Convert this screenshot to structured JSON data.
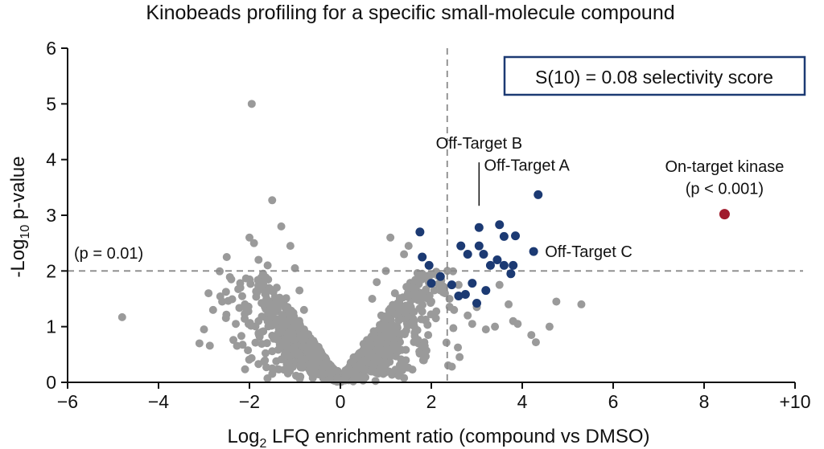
{
  "chart_data": {
    "type": "scatter",
    "title": "Kinobeads profiling for a specific small-molecule compound",
    "xlabel": {
      "prefix": "Log",
      "sub": "2",
      "suffix": " LFQ enrichment ratio (compound vs DMSO)"
    },
    "ylabel": {
      "prefix": "-Log",
      "sub": "10",
      "suffix": " p-value"
    },
    "xlim": [
      -6,
      10
    ],
    "ylim": [
      0,
      6
    ],
    "x_ticks": [
      -6,
      -4,
      -2,
      0,
      2,
      4,
      6,
      8,
      10
    ],
    "x_tick_labels": [
      "−6",
      "−4",
      "−2",
      "0",
      "2",
      "4",
      "6",
      "8",
      "+10"
    ],
    "y_ticks": [
      0,
      1,
      2,
      3,
      4,
      5,
      6
    ],
    "y_tick_labels": [
      "0",
      "1",
      "2",
      "3",
      "4",
      "5",
      "6"
    ],
    "grid": false,
    "thresholds": {
      "x": 2.35,
      "y": 2.0
    },
    "threshold_label": "(p = 0.01)",
    "score_box": "S(10) = 0.08 selectivity score",
    "colors": {
      "background": "#9a9a9a",
      "hits": "#1c3a73",
      "on_target": "#a01a2c",
      "threshold": "#8a8a8a",
      "box": "#1c3a73"
    },
    "series": [
      {
        "role": "background",
        "seed": 7,
        "count": 1500,
        "x": [
          -4.8,
          -3.1,
          -3.0,
          -2.9,
          -2.8,
          -2.6,
          -2.5,
          -2.4,
          -2.3,
          -2.2,
          -2.0,
          -1.95,
          -1.9,
          -1.8,
          -1.8,
          -1.7,
          -1.5,
          -1.4,
          -1.3,
          -1.2,
          -1.1,
          -1.0,
          -0.9,
          -0.8,
          -1.6,
          -2.1,
          0.7,
          0.8,
          0.9,
          1.0,
          1.1,
          1.2,
          1.3,
          1.4,
          1.6,
          1.7,
          1.9,
          2.0,
          2.2,
          2.4,
          2.5,
          2.6,
          2.8,
          2.9,
          3.0,
          3.2,
          3.4,
          3.5,
          3.7,
          3.8,
          3.9,
          4.2,
          4.3,
          4.6,
          4.75,
          5.3,
          1.5,
          1.8,
          2.1,
          2.3
        ],
        "y": [
          1.17,
          0.7,
          0.95,
          1.6,
          1.3,
          1.45,
          2.25,
          1.85,
          1.05,
          1.7,
          2.6,
          5.0,
          2.5,
          1.1,
          2.2,
          1.95,
          3.27,
          1.7,
          2.8,
          1.5,
          2.45,
          2.05,
          1.65,
          1.3,
          2.1,
          1.4,
          1.5,
          1.8,
          1.2,
          2.0,
          2.6,
          1.6,
          1.3,
          2.3,
          1.7,
          1.55,
          1.9,
          1.45,
          1.65,
          1.5,
          1.3,
          1.75,
          1.2,
          1.05,
          1.35,
          0.95,
          1.0,
          1.75,
          1.4,
          1.1,
          1.05,
          0.85,
          0.72,
          1.0,
          1.45,
          1.4,
          2.45,
          1.95,
          1.15,
          1.6
        ]
      },
      {
        "role": "hits",
        "x": [
          1.75,
          1.8,
          1.95,
          2.0,
          2.2,
          2.45,
          2.6,
          2.65,
          2.75,
          2.8,
          2.9,
          3.0,
          3.05,
          3.05,
          3.15,
          3.2,
          3.3,
          3.45,
          3.5,
          3.6,
          3.6,
          3.75,
          3.8,
          3.85,
          4.25,
          4.35
        ],
        "y": [
          2.7,
          2.25,
          2.1,
          1.78,
          1.9,
          1.75,
          1.55,
          2.45,
          1.58,
          2.3,
          1.78,
          1.42,
          2.45,
          2.78,
          2.3,
          1.65,
          2.1,
          2.2,
          2.83,
          2.62,
          2.1,
          1.95,
          2.1,
          2.63,
          2.35,
          3.37
        ]
      },
      {
        "role": "on_target",
        "x": [
          8.45
        ],
        "y": [
          3.02
        ]
      }
    ],
    "annotations": [
      {
        "text": "Off-Target B",
        "x": 3.05,
        "y": 4.2
      },
      {
        "text": "Off-Target A",
        "x": 4.1,
        "y": 3.8
      },
      {
        "text": "Off-Target C",
        "x": 4.5,
        "y": 2.25
      },
      {
        "text": "On-target kinase",
        "x": 8.45,
        "y": 3.78
      },
      {
        "text": "(p < 0.001)",
        "x": 8.45,
        "y": 3.38
      }
    ],
    "callout_line": {
      "x": 3.05,
      "y_from": 3.95,
      "y_to": 3.17
    }
  }
}
